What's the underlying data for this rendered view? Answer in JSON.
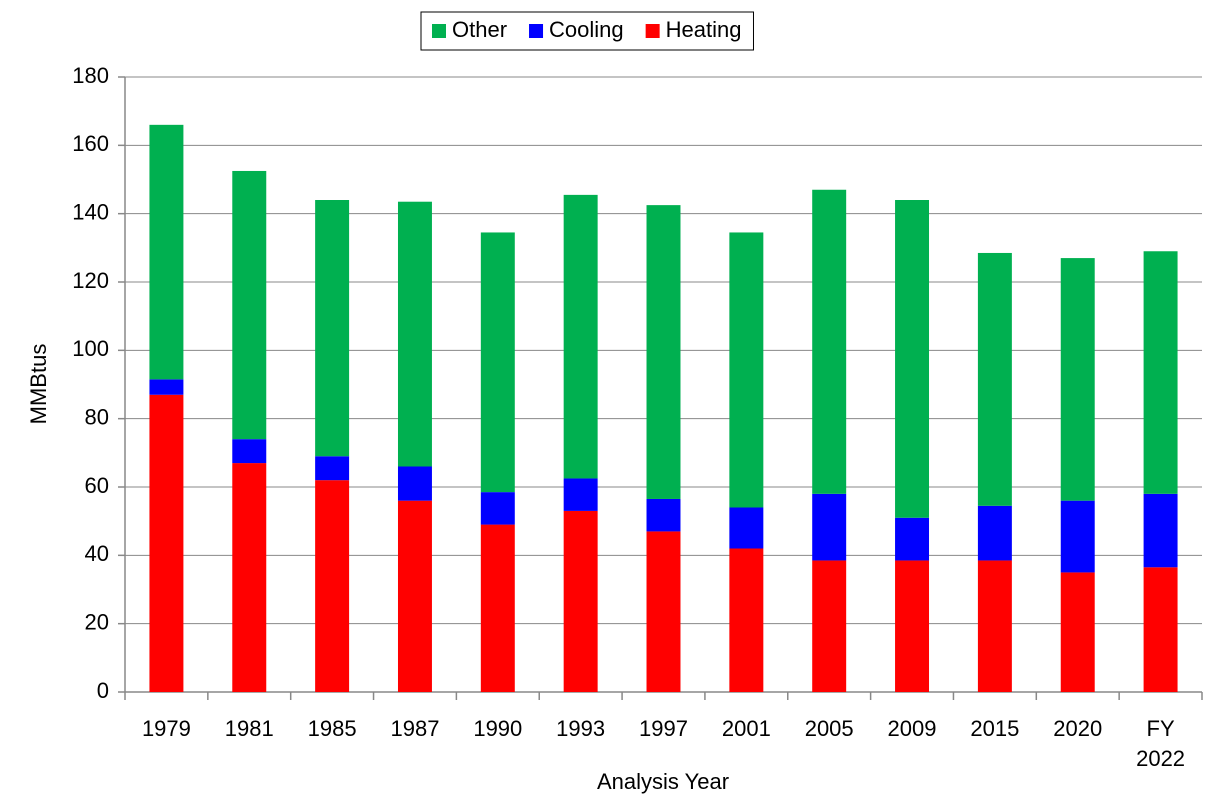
{
  "chart_data": {
    "type": "stacked-bar",
    "x_label": "Analysis Year",
    "y_label": "MMBtus",
    "categories": [
      "1979",
      "1981",
      "1985",
      "1987",
      "1990",
      "1993",
      "1997",
      "2001",
      "2005",
      "2009",
      "2015",
      "2020",
      "FY 2022"
    ],
    "series": [
      {
        "name": "Heating",
        "color": "#ff0000",
        "values": [
          87,
          67,
          62,
          56,
          49,
          53,
          47,
          42,
          38.5,
          38.5,
          38.5,
          35,
          36.5
        ]
      },
      {
        "name": "Cooling",
        "color": "#0000ff",
        "values": [
          4.5,
          7,
          7,
          10,
          9.5,
          9.5,
          9.5,
          12,
          19.5,
          12.5,
          16,
          21,
          21.5
        ]
      },
      {
        "name": "Other",
        "color": "#00b050",
        "values": [
          74.5,
          78.5,
          75,
          77.5,
          76,
          83,
          86,
          80.5,
          89,
          93,
          74,
          71,
          71
        ]
      }
    ],
    "ylim": [
      0,
      180
    ],
    "yticks": [
      0,
      20,
      40,
      60,
      80,
      100,
      120,
      140,
      160,
      180
    ],
    "grid": true,
    "legend": "top"
  }
}
